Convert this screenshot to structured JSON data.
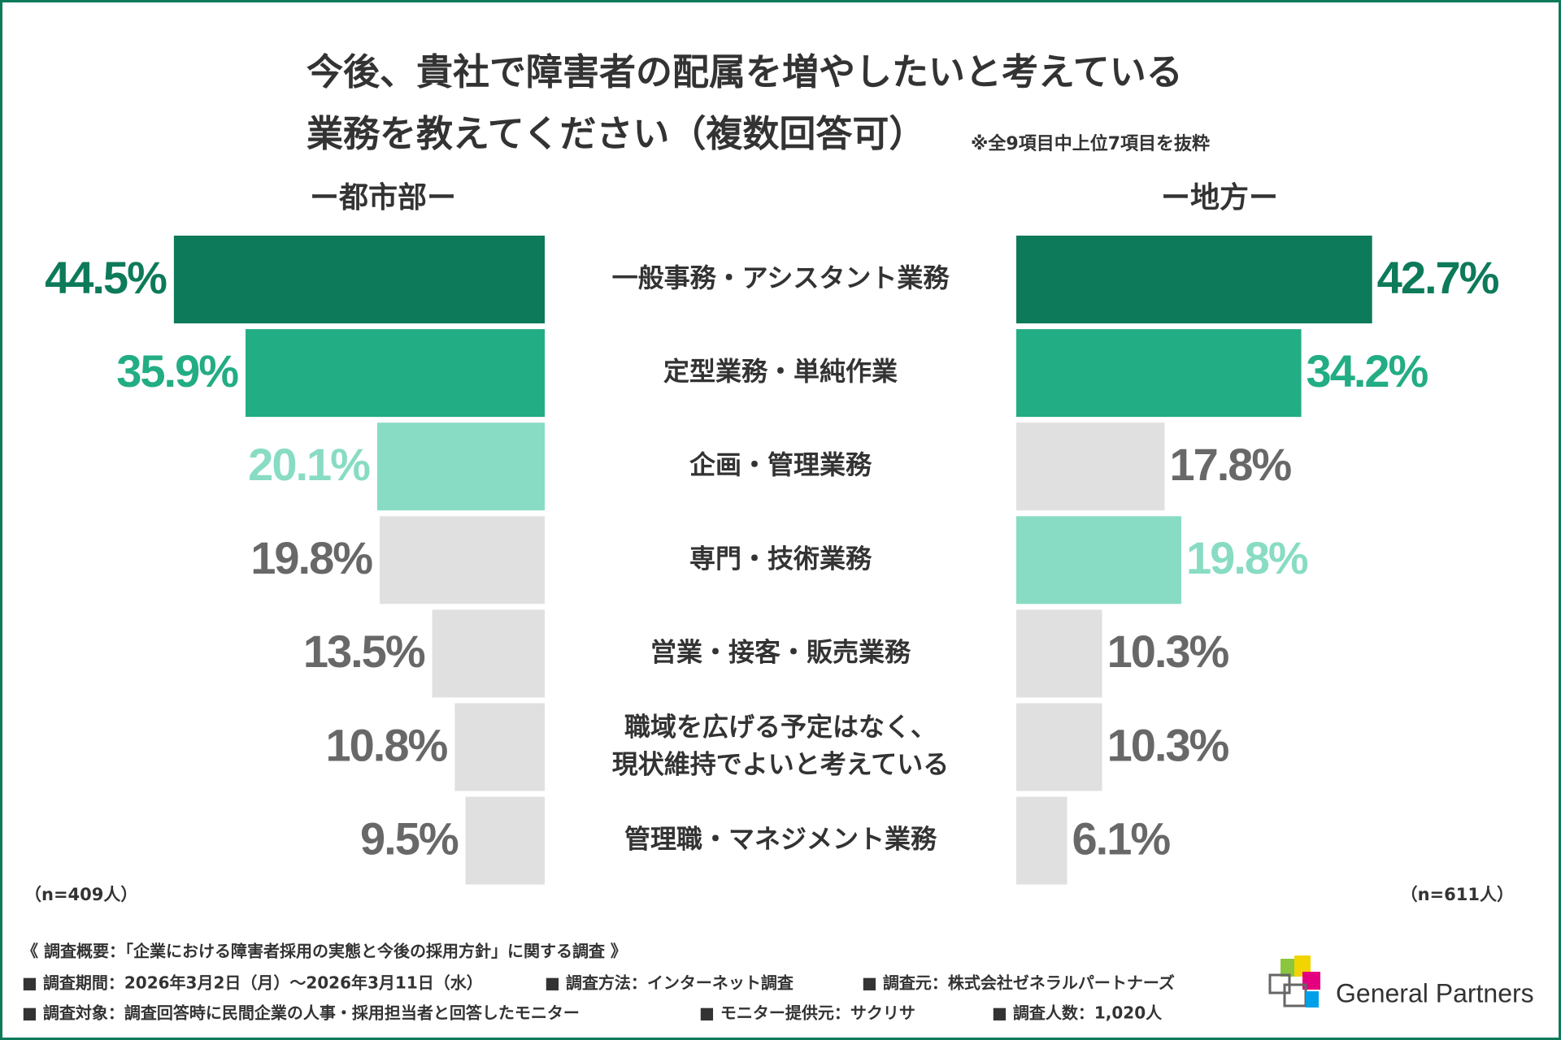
{
  "chart_data": {
    "type": "butterfly-bar",
    "title": [
      "今後、貴社で障害者の配属を増やしたいと考えている",
      "業務を教えてください（複数回答可）"
    ],
    "note": "※全9項目中上位7項目を抜粋",
    "categories": [
      "一般事務・アシスタント業務",
      "定型業務・単純作業",
      "企画・管理業務",
      "専門・技術業務",
      "営業・接客・販売業務",
      [
        "職域を広げる予定はなく、",
        "現状維持でよいと考えている"
      ],
      "管理職・マネジメント業務"
    ],
    "series": [
      {
        "name": "ー都市部ー",
        "sample": "（n=409人）",
        "values": [
          44.5,
          35.9,
          20.1,
          19.8,
          13.5,
          10.8,
          9.5
        ],
        "value_labels": [
          "44.5%",
          "35.9%",
          "20.1%",
          "19.8%",
          "13.5%",
          "10.8%",
          "9.5%"
        ],
        "colors": [
          "#0d7a5a",
          "#22ad84",
          "#88dcc3",
          "#e0e0e0",
          "#e0e0e0",
          "#e0e0e0",
          "#e0e0e0"
        ],
        "label_colors": [
          "#0d7a5a",
          "#22ad84",
          "#88dcc3",
          "#686868",
          "#686868",
          "#686868",
          "#686868"
        ]
      },
      {
        "name": "ー地方ー",
        "sample": "（n=611人）",
        "values": [
          42.7,
          34.2,
          17.8,
          19.8,
          10.3,
          10.3,
          6.1
        ],
        "value_labels": [
          "42.7%",
          "34.2%",
          "17.8%",
          "19.8%",
          "10.3%",
          "10.3%",
          "6.1%"
        ],
        "colors": [
          "#0d7a5a",
          "#22ad84",
          "#e0e0e0",
          "#88dcc3",
          "#e0e0e0",
          "#e0e0e0",
          "#e0e0e0"
        ],
        "label_colors": [
          "#0d7a5a",
          "#22ad84",
          "#686868",
          "#88dcc3",
          "#686868",
          "#686868",
          "#686868"
        ]
      }
    ]
  },
  "footer": {
    "heading": "《 調査概要：「企業における障害者採用の実態と今後の採用方針」に関する調査 》",
    "lines": [
      [
        "■ 調査期間：2026年3月2日（月）～2026年3月11日（水）",
        "■ 調査方法：インターネット調査",
        "■ 調査元：株式会社ゼネラルパートナーズ"
      ],
      [
        "■ 調査対象：調査回答時に民間企業の人事・採用担当者と回答したモニター",
        "■ モニター提供元：サクリサ",
        "■ 調査人数：1,020人"
      ]
    ]
  },
  "logo": "General Partners"
}
